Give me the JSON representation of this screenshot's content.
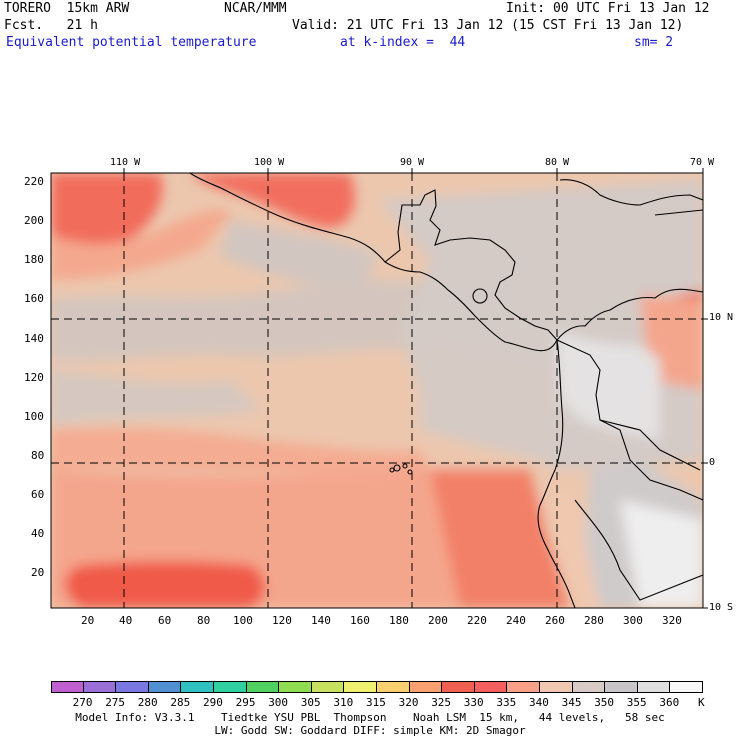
{
  "header": {
    "model": "TORERO  15km ARW",
    "center": "NCAR/MMM",
    "init": "Init: 00 UTC Fri 13 Jan 12",
    "fcst": "Fcst.   21 h",
    "valid": "Valid: 21 UTC Fri 13 Jan 12 (15 CST Fri 13 Jan 12)",
    "field": "Equivalent potential temperature",
    "level": "at k-index =  44",
    "smooth": "sm= 2"
  },
  "top_axis": [
    "110 W",
    "100 W",
    "90 W",
    "80 W",
    "70 W"
  ],
  "right_axis": [
    "10 N",
    "0",
    "10 S"
  ],
  "left_axis": [
    "220",
    "200",
    "180",
    "160",
    "140",
    "120",
    "100",
    "80",
    "60",
    "40",
    "20"
  ],
  "bottom_axis": [
    "20",
    "40",
    "60",
    "80",
    "100",
    "120",
    "140",
    "160",
    "180",
    "200",
    "220",
    "240",
    "260",
    "280",
    "300",
    "320"
  ],
  "colorbar": {
    "labels": [
      "270",
      "275",
      "280",
      "285",
      "290",
      "295",
      "300",
      "305",
      "310",
      "315",
      "320",
      "325",
      "330",
      "335",
      "340",
      "345",
      "350",
      "355",
      "360"
    ],
    "unit": "K",
    "colors": [
      "#c060d0",
      "#9a70d8",
      "#7878e0",
      "#5090d0",
      "#30c0c0",
      "#30d0a0",
      "#50d060",
      "#90dc50",
      "#c8e060",
      "#f0f070",
      "#f8d070",
      "#f8a070",
      "#f06050",
      "#f46060",
      "#f8a088",
      "#f0c8b0",
      "#d8cac4",
      "#c8c4c8",
      "#e0e0e0",
      "#f8f8f8"
    ]
  },
  "footer": {
    "line1": "Model Info: V3.3.1    Tiedtke YSU PBL  Thompson    Noah LSM  15 km,   44 levels,   58 sec",
    "line2": "LW: Godd SW: Goddard DIFF: simple KM: 2D Smagor"
  }
}
